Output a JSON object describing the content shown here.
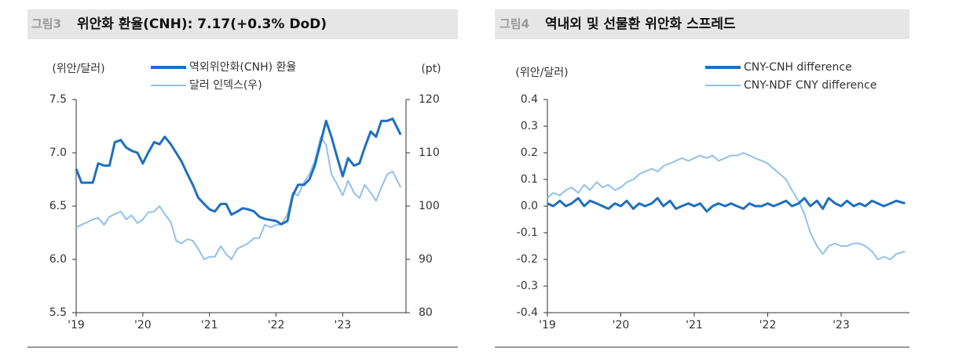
{
  "chart_data": [
    {
      "type": "line",
      "figure_label": "그림3",
      "title": "위안화 환율(CNH): 7.17(+0.3% DoD)",
      "y_unit_label": "(위안/달러)",
      "y2_unit_label": "(pt)",
      "legend": "top-center",
      "x": [
        2019.0,
        2019.08,
        2019.17,
        2019.25,
        2019.33,
        2019.42,
        2019.5,
        2019.58,
        2019.67,
        2019.75,
        2019.83,
        2019.92,
        2020.0,
        2020.08,
        2020.17,
        2020.25,
        2020.33,
        2020.42,
        2020.5,
        2020.58,
        2020.67,
        2020.75,
        2020.83,
        2020.92,
        2021.0,
        2021.08,
        2021.17,
        2021.25,
        2021.33,
        2021.42,
        2021.5,
        2021.58,
        2021.67,
        2021.75,
        2021.83,
        2021.92,
        2022.0,
        2022.08,
        2022.17,
        2022.25,
        2022.33,
        2022.42,
        2022.5,
        2022.58,
        2022.67,
        2022.75,
        2022.83,
        2022.92,
        2023.0,
        2023.08,
        2023.17,
        2023.25,
        2023.33,
        2023.42,
        2023.5,
        2023.58,
        2023.67,
        2023.75,
        2023.87
      ],
      "xlim": [
        2019,
        2023.95
      ],
      "xticks": [
        {
          "value": 2019,
          "label": "'19"
        },
        {
          "value": 2020,
          "label": "'20"
        },
        {
          "value": 2021,
          "label": "'21"
        },
        {
          "value": 2022,
          "label": "'22"
        },
        {
          "value": 2023,
          "label": "'23"
        }
      ],
      "ylim": [
        5.5,
        7.5
      ],
      "yticks": [
        7.5,
        {
          "value": 7,
          "label": "7.0"
        },
        6.5,
        {
          "value": 6,
          "label": "6.0"
        },
        5.5
      ],
      "y2lim": [
        80,
        120
      ],
      "y2ticks": [
        120,
        110,
        100,
        90,
        80
      ],
      "series": [
        {
          "name": "역외위안화(CNH) 환율",
          "color": "#1f6fc0",
          "values": [
            6.85,
            6.72,
            6.72,
            6.72,
            6.9,
            6.88,
            6.88,
            7.1,
            7.12,
            7.05,
            7.02,
            7.0,
            6.9,
            7.0,
            7.1,
            7.08,
            7.15,
            7.08,
            7.0,
            6.92,
            6.8,
            6.7,
            6.58,
            6.52,
            6.47,
            6.45,
            6.52,
            6.52,
            6.42,
            6.45,
            6.48,
            6.47,
            6.45,
            6.4,
            6.38,
            6.37,
            6.36,
            6.33,
            6.36,
            6.6,
            6.7,
            6.7,
            6.75,
            6.88,
            7.1,
            7.3,
            7.15,
            6.95,
            6.78,
            6.95,
            6.88,
            6.9,
            7.05,
            7.2,
            7.15,
            7.3,
            7.3,
            7.32,
            7.17
          ]
        },
        {
          "name": "달러 인덱스(우)",
          "color": "#92c1ea",
          "axis": "y2",
          "values": [
            96,
            96.5,
            97,
            97.5,
            97.8,
            96.5,
            98,
            98.5,
            99,
            97.5,
            98.3,
            96.8,
            97.5,
            98.8,
            99,
            100,
            98.5,
            97,
            93.5,
            93,
            93.8,
            93.5,
            92,
            90,
            90.5,
            90.5,
            92.5,
            91,
            90,
            92,
            92.5,
            93,
            94,
            94,
            96.5,
            96,
            96.5,
            96.5,
            98.5,
            102.5,
            102,
            104.5,
            106,
            108.5,
            113,
            111.5,
            106,
            104,
            102,
            104.8,
            102.5,
            101.5,
            104,
            102.5,
            101,
            103.5,
            106,
            106.5,
            103.5
          ]
        }
      ]
    },
    {
      "type": "line",
      "figure_label": "그림4",
      "title": "역내외 및 선물환 위안화 스프레드",
      "y_unit_label": "(위안/달러)",
      "legend": "top-right",
      "x": [
        2019.0,
        2019.08,
        2019.17,
        2019.25,
        2019.33,
        2019.42,
        2019.5,
        2019.58,
        2019.67,
        2019.75,
        2019.83,
        2019.92,
        2020.0,
        2020.08,
        2020.17,
        2020.25,
        2020.33,
        2020.42,
        2020.5,
        2020.58,
        2020.67,
        2020.75,
        2020.83,
        2020.92,
        2021.0,
        2021.08,
        2021.17,
        2021.25,
        2021.33,
        2021.42,
        2021.5,
        2021.58,
        2021.67,
        2021.75,
        2021.83,
        2021.92,
        2022.0,
        2022.08,
        2022.17,
        2022.25,
        2022.33,
        2022.42,
        2022.5,
        2022.58,
        2022.67,
        2022.75,
        2022.83,
        2022.92,
        2023.0,
        2023.08,
        2023.17,
        2023.25,
        2023.33,
        2023.42,
        2023.5,
        2023.58,
        2023.67,
        2023.75,
        2023.87
      ],
      "xlim": [
        2019,
        2023.93
      ],
      "xticks": [
        {
          "value": 2019,
          "label": "'19"
        },
        {
          "value": 2020,
          "label": "'20"
        },
        {
          "value": 2021,
          "label": "'21"
        },
        {
          "value": 2022,
          "label": "'22"
        },
        {
          "value": 2023,
          "label": "'23"
        }
      ],
      "ylim": [
        -0.4,
        0.4
      ],
      "yticks": [
        0.4,
        0.3,
        0.2,
        0.1,
        {
          "value": 0,
          "label": "0.0"
        },
        -0.1,
        -0.2,
        -0.3,
        -0.4
      ],
      "series": [
        {
          "name": "CNY-CNH difference",
          "color": "#1f6fc0",
          "values": [
            0.01,
            0.0,
            0.02,
            0.0,
            0.01,
            0.03,
            0.0,
            0.02,
            0.01,
            0.0,
            -0.01,
            0.01,
            0.0,
            0.02,
            -0.01,
            0.01,
            0.0,
            0.01,
            0.03,
            0.0,
            0.02,
            -0.01,
            0.0,
            0.01,
            0.0,
            0.01,
            -0.02,
            0.0,
            0.01,
            0.0,
            0.01,
            0.0,
            -0.01,
            0.01,
            0.0,
            0.0,
            0.01,
            0.0,
            0.01,
            0.02,
            0.0,
            0.01,
            0.03,
            0.0,
            0.02,
            -0.01,
            0.03,
            0.01,
            0.0,
            0.02,
            0.0,
            0.01,
            0.0,
            0.02,
            0.01,
            0.0,
            0.01,
            0.02,
            0.01
          ]
        },
        {
          "name": "CNY-NDF CNY difference",
          "color": "#92c1ea",
          "values": [
            0.03,
            0.05,
            0.04,
            0.06,
            0.07,
            0.05,
            0.08,
            0.06,
            0.09,
            0.07,
            0.08,
            0.06,
            0.07,
            0.09,
            0.1,
            0.12,
            0.13,
            0.14,
            0.13,
            0.15,
            0.16,
            0.17,
            0.18,
            0.17,
            0.18,
            0.19,
            0.18,
            0.19,
            0.17,
            0.18,
            0.19,
            0.19,
            0.2,
            0.19,
            0.18,
            0.17,
            0.16,
            0.14,
            0.12,
            0.1,
            0.06,
            0.02,
            -0.03,
            -0.1,
            -0.15,
            -0.18,
            -0.15,
            -0.14,
            -0.15,
            -0.15,
            -0.14,
            -0.14,
            -0.15,
            -0.17,
            -0.2,
            -0.19,
            -0.2,
            -0.18,
            -0.17
          ]
        }
      ]
    }
  ]
}
